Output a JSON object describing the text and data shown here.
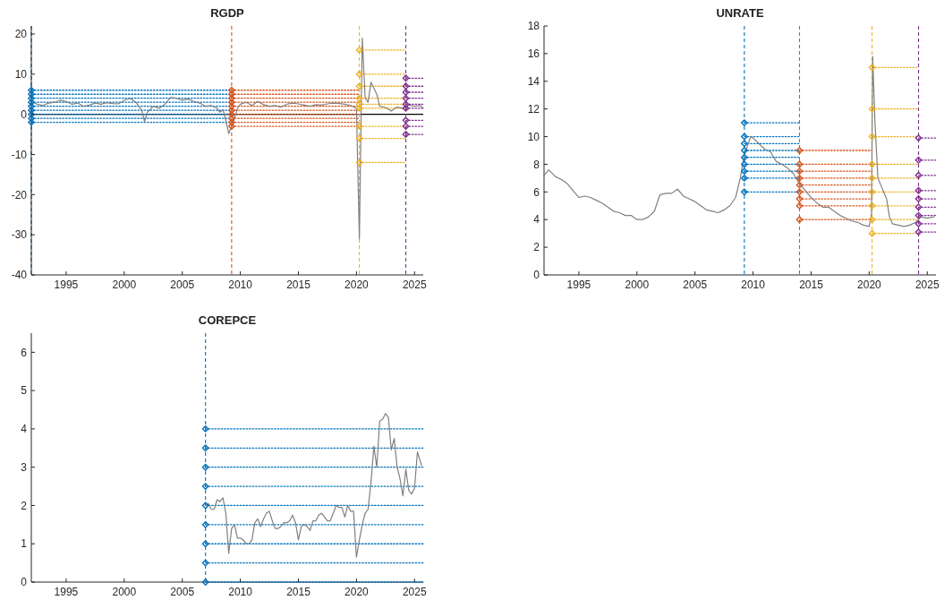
{
  "chart_data": [
    {
      "type": "line",
      "title": "RGDP",
      "xlim": [
        1992,
        2025.75
      ],
      "xticks": [
        1995,
        2000,
        2005,
        2010,
        2015,
        2020,
        2025
      ],
      "ylim": [
        -40,
        22
      ],
      "yticks": [
        -40,
        -30,
        -20,
        -10,
        0,
        10,
        20
      ],
      "line_style": "solid",
      "ref_lines": [
        {
          "axis": "y",
          "value": 0,
          "color": "#000000",
          "line_style": "solid"
        },
        {
          "axis": "x",
          "value": 1992,
          "color": "#0072bd",
          "line_style": "dashed"
        },
        {
          "axis": "x",
          "value": 2009.25,
          "color": "#d95319",
          "line_style": "dashed"
        },
        {
          "axis": "x",
          "value": 2020.25,
          "color": "#edb120",
          "line_style": "dashed"
        },
        {
          "axis": "x",
          "value": 2024.25,
          "color": "#7e2f8e",
          "line_style": "dashed"
        }
      ],
      "series": [
        {
          "type": "line",
          "color": "#0072bd",
          "line_style": "dotted",
          "x": [
            1992,
            2009.25
          ],
          "values": [
            -2,
            -2
          ]
        },
        {
          "type": "line",
          "color": "#0072bd",
          "line_style": "dotted",
          "x": [
            1992,
            2009.25
          ],
          "values": [
            -1,
            -1
          ]
        },
        {
          "type": "line",
          "color": "#0072bd",
          "line_style": "dotted",
          "x": [
            1992,
            2009.25
          ],
          "values": [
            0,
            0
          ]
        },
        {
          "type": "line",
          "color": "#0072bd",
          "line_style": "dotted",
          "x": [
            1992,
            2009.25
          ],
          "values": [
            1,
            1
          ]
        },
        {
          "type": "line",
          "color": "#0072bd",
          "line_style": "dotted",
          "x": [
            1992,
            2009.25
          ],
          "values": [
            2,
            2
          ]
        },
        {
          "type": "line",
          "color": "#0072bd",
          "line_style": "dotted",
          "x": [
            1992,
            2009.25
          ],
          "values": [
            3,
            3
          ]
        },
        {
          "type": "line",
          "color": "#0072bd",
          "line_style": "dotted",
          "x": [
            1992,
            2009.25
          ],
          "values": [
            4,
            4
          ]
        },
        {
          "type": "line",
          "color": "#0072bd",
          "line_style": "dotted",
          "x": [
            1992,
            2009.25
          ],
          "values": [
            5,
            5
          ]
        },
        {
          "type": "line",
          "color": "#0072bd",
          "line_style": "dotted",
          "x": [
            1992,
            2009.25
          ],
          "values": [
            6,
            6
          ]
        },
        {
          "type": "line",
          "color": "#d95319",
          "line_style": "dotted",
          "x": [
            2009.25,
            2020.25
          ],
          "values": [
            -3,
            -3
          ]
        },
        {
          "type": "line",
          "color": "#d95319",
          "line_style": "dotted",
          "x": [
            2009.25,
            2020.25
          ],
          "values": [
            -2,
            -2
          ]
        },
        {
          "type": "line",
          "color": "#d95319",
          "line_style": "dotted",
          "x": [
            2009.25,
            2020.25
          ],
          "values": [
            -1,
            -1
          ]
        },
        {
          "type": "line",
          "color": "#d95319",
          "line_style": "dotted",
          "x": [
            2009.25,
            2020.25
          ],
          "values": [
            0,
            0
          ]
        },
        {
          "type": "line",
          "color": "#d95319",
          "line_style": "dotted",
          "x": [
            2009.25,
            2020.25
          ],
          "values": [
            1,
            1
          ]
        },
        {
          "type": "line",
          "color": "#d95319",
          "line_style": "dotted",
          "x": [
            2009.25,
            2020.25
          ],
          "values": [
            2,
            2
          ]
        },
        {
          "type": "line",
          "color": "#d95319",
          "line_style": "dotted",
          "x": [
            2009.25,
            2020.25
          ],
          "values": [
            3,
            3
          ]
        },
        {
          "type": "line",
          "color": "#d95319",
          "line_style": "dotted",
          "x": [
            2009.25,
            2020.25
          ],
          "values": [
            4,
            4
          ]
        },
        {
          "type": "line",
          "color": "#d95319",
          "line_style": "dotted",
          "x": [
            2009.25,
            2020.25
          ],
          "values": [
            5,
            5
          ]
        },
        {
          "type": "line",
          "color": "#d95319",
          "line_style": "dotted",
          "x": [
            2009.25,
            2020.25
          ],
          "values": [
            6,
            6
          ]
        },
        {
          "type": "line",
          "color": "#edb120",
          "line_style": "dotted",
          "x": [
            2020.25,
            2024.25
          ],
          "values": [
            -12,
            -12
          ]
        },
        {
          "type": "line",
          "color": "#edb120",
          "line_style": "dotted",
          "x": [
            2020.25,
            2024.25
          ],
          "values": [
            -6,
            -6
          ]
        },
        {
          "type": "line",
          "color": "#edb120",
          "line_style": "dotted",
          "x": [
            2020.25,
            2024.25
          ],
          "values": [
            -3,
            -3
          ]
        },
        {
          "type": "line",
          "color": "#edb120",
          "line_style": "dotted",
          "x": [
            2020.25,
            2024.25
          ],
          "values": [
            1.5,
            1.5
          ]
        },
        {
          "type": "line",
          "color": "#edb120",
          "line_style": "dotted",
          "x": [
            2020.25,
            2024.25
          ],
          "values": [
            2.5,
            2.5
          ]
        },
        {
          "type": "line",
          "color": "#edb120",
          "line_style": "dotted",
          "x": [
            2020.25,
            2024.25
          ],
          "values": [
            4,
            4
          ]
        },
        {
          "type": "line",
          "color": "#edb120",
          "line_style": "dotted",
          "x": [
            2020.25,
            2024.25
          ],
          "values": [
            7,
            7
          ]
        },
        {
          "type": "line",
          "color": "#edb120",
          "line_style": "dotted",
          "x": [
            2020.25,
            2024.25
          ],
          "values": [
            10,
            10
          ]
        },
        {
          "type": "line",
          "color": "#edb120",
          "line_style": "dotted",
          "x": [
            2020.25,
            2024.25
          ],
          "values": [
            16,
            16
          ]
        },
        {
          "type": "line",
          "color": "#7e2f8e",
          "line_style": "dotted",
          "x": [
            2024.25,
            2025.75
          ],
          "values": [
            -5,
            -5
          ]
        },
        {
          "type": "line",
          "color": "#7e2f8e",
          "line_style": "dotted",
          "x": [
            2024.25,
            2025.75
          ],
          "values": [
            -3,
            -3
          ]
        },
        {
          "type": "line",
          "color": "#7e2f8e",
          "line_style": "dotted",
          "x": [
            2024.25,
            2025.75
          ],
          "values": [
            -1.5,
            -1.5
          ]
        },
        {
          "type": "line",
          "color": "#7e2f8e",
          "line_style": "dotted",
          "x": [
            2024.25,
            2025.75
          ],
          "values": [
            1.5,
            1.5
          ]
        },
        {
          "type": "line",
          "color": "#7e2f8e",
          "line_style": "dotted",
          "x": [
            2024.25,
            2025.75
          ],
          "values": [
            2.5,
            2.5
          ]
        },
        {
          "type": "line",
          "color": "#7e2f8e",
          "line_style": "dotted",
          "x": [
            2024.25,
            2025.75
          ],
          "values": [
            4,
            4
          ]
        },
        {
          "type": "line",
          "color": "#7e2f8e",
          "line_style": "dotted",
          "x": [
            2024.25,
            2025.75
          ],
          "values": [
            5.5,
            5.5
          ]
        },
        {
          "type": "line",
          "color": "#7e2f8e",
          "line_style": "dotted",
          "x": [
            2024.25,
            2025.75
          ],
          "values": [
            7,
            7
          ]
        },
        {
          "type": "line",
          "color": "#7e2f8e",
          "line_style": "dotted",
          "x": [
            2024.25,
            2025.75
          ],
          "values": [
            9,
            9
          ]
        },
        {
          "type": "line",
          "color": "#808080",
          "x": [
            1992,
            1992.5,
            1993,
            1993.5,
            1994,
            1994.5,
            1995,
            1995.5,
            1996,
            1996.5,
            1997,
            1997.5,
            1998,
            1998.5,
            1999,
            1999.5,
            2000,
            2000.5,
            2001,
            2001.5,
            2001.75,
            2002,
            2002.5,
            2003,
            2003.5,
            2004,
            2004.5,
            2005,
            2005.5,
            2006,
            2006.5,
            2007,
            2007.5,
            2008,
            2008.25,
            2008.5,
            2008.75,
            2009,
            2009.25,
            2009.5,
            2009.75,
            2010,
            2010.5,
            2011,
            2011.5,
            2012,
            2012.5,
            2013,
            2013.5,
            2014,
            2014.5,
            2015,
            2015.5,
            2016,
            2016.5,
            2017,
            2017.5,
            2018,
            2018.5,
            2019,
            2019.5,
            2020,
            2020.25,
            2020.5,
            2020.75,
            2021,
            2021.25,
            2021.5,
            2021.75,
            2022,
            2022.5,
            2023,
            2023.5,
            2024,
            2024.5,
            2025,
            2025.5,
            2025.75
          ],
          "values": [
            3.3,
            2.5,
            2.2,
            2.8,
            3.0,
            3.5,
            3.2,
            2.5,
            2.8,
            2.0,
            2.3,
            2.8,
            2.5,
            2.9,
            2.7,
            2.6,
            3.5,
            4.0,
            3.0,
            1.0,
            -1.8,
            0.5,
            2.0,
            1.5,
            2.5,
            4.2,
            4.0,
            3.5,
            3.8,
            3.2,
            2.8,
            2.0,
            2.2,
            1.5,
            0.5,
            1.2,
            -1.5,
            -4.8,
            -3,
            -1,
            1.5,
            2.5,
            3.0,
            2.2,
            3.2,
            2.4,
            2.0,
            2.2,
            1.8,
            2.5,
            2.8,
            2.6,
            2.3,
            2.0,
            2.4,
            2.3,
            2.6,
            2.8,
            2.7,
            2.5,
            2.2,
            1.5,
            -31,
            19,
            4,
            3,
            8,
            6.5,
            5,
            2,
            1.7,
            0.8,
            1.8,
            1.5,
            2.3,
            2.0,
            2.2,
            1.5
          ]
        },
        {
          "type": "scatter",
          "marker": "diamond",
          "color": "#0072bd",
          "x": [
            1992,
            1992,
            1992,
            1992,
            1992,
            1992,
            1992,
            1992,
            1992
          ],
          "values": [
            -2,
            -1,
            0,
            1,
            2,
            3,
            4,
            5,
            6
          ]
        },
        {
          "type": "scatter",
          "marker": "diamond",
          "color": "#d95319",
          "x": [
            2009.25,
            2009.25,
            2009.25,
            2009.25,
            2009.25,
            2009.25,
            2009.25,
            2009.25,
            2009.25,
            2009.25
          ],
          "values": [
            -3,
            -2,
            -1,
            0,
            1,
            2,
            3,
            4,
            5,
            6
          ]
        },
        {
          "type": "scatter",
          "marker": "diamond",
          "color": "#edb120",
          "x": [
            2020.25,
            2020.25,
            2020.25,
            2020.25,
            2020.25,
            2020.25,
            2020.25,
            2020.25,
            2020.25
          ],
          "values": [
            -12,
            -6,
            -3,
            1.5,
            2.5,
            4,
            7,
            10,
            16
          ]
        },
        {
          "type": "scatter",
          "marker": "diamond",
          "color": "#7e2f8e",
          "x": [
            2024.25,
            2024.25,
            2024.25,
            2024.25,
            2024.25,
            2024.25,
            2024.25,
            2024.25,
            2024.25
          ],
          "values": [
            -5,
            -3,
            -1.5,
            1.5,
            2.5,
            4,
            5.5,
            7,
            9
          ]
        }
      ]
    },
    {
      "type": "line",
      "title": "UNRATE",
      "xlim": [
        1992,
        2025.75
      ],
      "xticks": [
        1995,
        2000,
        2005,
        2010,
        2015,
        2020,
        2025
      ],
      "ylim": [
        0,
        18
      ],
      "yticks": [
        0,
        2,
        4,
        6,
        8,
        10,
        12,
        14,
        16,
        18
      ],
      "line_style": "solid",
      "ref_lines": [
        {
          "axis": "x",
          "value": 2009.25,
          "color": "#0072bd",
          "line_style": "dashed"
        },
        {
          "axis": "x",
          "value": 2014,
          "color": "#d95319",
          "line_style": "dashed"
        },
        {
          "axis": "x",
          "value": 2020.25,
          "color": "#edb120",
          "line_style": "dashed"
        },
        {
          "axis": "x",
          "value": 2024.25,
          "color": "#7e2f8e",
          "line_style": "dashed"
        }
      ],
      "series": [
        {
          "type": "line",
          "color": "#0072bd",
          "line_style": "dotted",
          "x": [
            2009.25,
            2014
          ],
          "values": [
            6,
            6
          ]
        },
        {
          "type": "line",
          "color": "#0072bd",
          "line_style": "dotted",
          "x": [
            2009.25,
            2014
          ],
          "values": [
            7,
            7
          ]
        },
        {
          "type": "line",
          "color": "#0072bd",
          "line_style": "dotted",
          "x": [
            2009.25,
            2014
          ],
          "values": [
            7.5,
            7.5
          ]
        },
        {
          "type": "line",
          "color": "#0072bd",
          "line_style": "dotted",
          "x": [
            2009.25,
            2014
          ],
          "values": [
            8,
            8
          ]
        },
        {
          "type": "line",
          "color": "#0072bd",
          "line_style": "dotted",
          "x": [
            2009.25,
            2014
          ],
          "values": [
            8.5,
            8.5
          ]
        },
        {
          "type": "line",
          "color": "#0072bd",
          "line_style": "dotted",
          "x": [
            2009.25,
            2014
          ],
          "values": [
            9,
            9
          ]
        },
        {
          "type": "line",
          "color": "#0072bd",
          "line_style": "dotted",
          "x": [
            2009.25,
            2014
          ],
          "values": [
            9.5,
            9.5
          ]
        },
        {
          "type": "line",
          "color": "#0072bd",
          "line_style": "dotted",
          "x": [
            2009.25,
            2014
          ],
          "values": [
            10,
            10
          ]
        },
        {
          "type": "line",
          "color": "#0072bd",
          "line_style": "dotted",
          "x": [
            2009.25,
            2014
          ],
          "values": [
            11,
            11
          ]
        },
        {
          "type": "line",
          "color": "#d95319",
          "line_style": "dotted",
          "x": [
            2014,
            2020.25
          ],
          "values": [
            4,
            4
          ]
        },
        {
          "type": "line",
          "color": "#d95319",
          "line_style": "dotted",
          "x": [
            2014,
            2020.25
          ],
          "values": [
            5,
            5
          ]
        },
        {
          "type": "line",
          "color": "#d95319",
          "line_style": "dotted",
          "x": [
            2014,
            2020.25
          ],
          "values": [
            5.5,
            5.5
          ]
        },
        {
          "type": "line",
          "color": "#d95319",
          "line_style": "dotted",
          "x": [
            2014,
            2020.25
          ],
          "values": [
            6,
            6
          ]
        },
        {
          "type": "line",
          "color": "#d95319",
          "line_style": "dotted",
          "x": [
            2014,
            2020.25
          ],
          "values": [
            6.5,
            6.5
          ]
        },
        {
          "type": "line",
          "color": "#d95319",
          "line_style": "dotted",
          "x": [
            2014,
            2020.25
          ],
          "values": [
            7,
            7
          ]
        },
        {
          "type": "line",
          "color": "#d95319",
          "line_style": "dotted",
          "x": [
            2014,
            2020.25
          ],
          "values": [
            7.5,
            7.5
          ]
        },
        {
          "type": "line",
          "color": "#d95319",
          "line_style": "dotted",
          "x": [
            2014,
            2020.25
          ],
          "values": [
            8,
            8
          ]
        },
        {
          "type": "line",
          "color": "#d95319",
          "line_style": "dotted",
          "x": [
            2014,
            2020.25
          ],
          "values": [
            9,
            9
          ]
        },
        {
          "type": "line",
          "color": "#edb120",
          "line_style": "dotted",
          "x": [
            2020.25,
            2024.25
          ],
          "values": [
            3,
            3
          ]
        },
        {
          "type": "line",
          "color": "#edb120",
          "line_style": "dotted",
          "x": [
            2020.25,
            2024.25
          ],
          "values": [
            4,
            4
          ]
        },
        {
          "type": "line",
          "color": "#edb120",
          "line_style": "dotted",
          "x": [
            2020.25,
            2024.25
          ],
          "values": [
            5,
            5
          ]
        },
        {
          "type": "line",
          "color": "#edb120",
          "line_style": "dotted",
          "x": [
            2020.25,
            2024.25
          ],
          "values": [
            6,
            6
          ]
        },
        {
          "type": "line",
          "color": "#edb120",
          "line_style": "dotted",
          "x": [
            2020.25,
            2024.25
          ],
          "values": [
            7,
            7
          ]
        },
        {
          "type": "line",
          "color": "#edb120",
          "line_style": "dotted",
          "x": [
            2020.25,
            2024.25
          ],
          "values": [
            8,
            8
          ]
        },
        {
          "type": "line",
          "color": "#edb120",
          "line_style": "dotted",
          "x": [
            2020.25,
            2024.25
          ],
          "values": [
            10,
            10
          ]
        },
        {
          "type": "line",
          "color": "#edb120",
          "line_style": "dotted",
          "x": [
            2020.25,
            2024.25
          ],
          "values": [
            12,
            12
          ]
        },
        {
          "type": "line",
          "color": "#edb120",
          "line_style": "dotted",
          "x": [
            2020.25,
            2024.25
          ],
          "values": [
            15,
            15
          ]
        },
        {
          "type": "line",
          "color": "#7e2f8e",
          "line_style": "dotted",
          "x": [
            2024.25,
            2025.75
          ],
          "values": [
            3.1,
            3.1
          ]
        },
        {
          "type": "line",
          "color": "#7e2f8e",
          "line_style": "dotted",
          "x": [
            2024.25,
            2025.75
          ],
          "values": [
            3.7,
            3.7
          ]
        },
        {
          "type": "line",
          "color": "#7e2f8e",
          "line_style": "dotted",
          "x": [
            2024.25,
            2025.75
          ],
          "values": [
            4.3,
            4.3
          ]
        },
        {
          "type": "line",
          "color": "#7e2f8e",
          "line_style": "dotted",
          "x": [
            2024.25,
            2025.75
          ],
          "values": [
            4.9,
            4.9
          ]
        },
        {
          "type": "line",
          "color": "#7e2f8e",
          "line_style": "dotted",
          "x": [
            2024.25,
            2025.75
          ],
          "values": [
            5.5,
            5.5
          ]
        },
        {
          "type": "line",
          "color": "#7e2f8e",
          "line_style": "dotted",
          "x": [
            2024.25,
            2025.75
          ],
          "values": [
            6.1,
            6.1
          ]
        },
        {
          "type": "line",
          "color": "#7e2f8e",
          "line_style": "dotted",
          "x": [
            2024.25,
            2025.75
          ],
          "values": [
            7.2,
            7.2
          ]
        },
        {
          "type": "line",
          "color": "#7e2f8e",
          "line_style": "dotted",
          "x": [
            2024.25,
            2025.75
          ],
          "values": [
            8.3,
            8.3
          ]
        },
        {
          "type": "line",
          "color": "#7e2f8e",
          "line_style": "dotted",
          "x": [
            2024.25,
            2025.75
          ],
          "values": [
            9.9,
            9.9
          ]
        },
        {
          "type": "line",
          "color": "#808080",
          "x": [
            1992,
            1992.4,
            1993,
            1993.5,
            1994,
            1994.5,
            1995,
            1995.5,
            1996,
            1996.5,
            1997,
            1997.5,
            1998,
            1998.5,
            1999,
            1999.5,
            2000,
            2000.5,
            2001,
            2001.5,
            2001.9,
            2002,
            2002.5,
            2003,
            2003.5,
            2004,
            2004.5,
            2005,
            2005.5,
            2006,
            2006.5,
            2007,
            2007.5,
            2008,
            2008.5,
            2008.9,
            2009.25,
            2009.8,
            2010,
            2010.5,
            2011,
            2011.5,
            2012,
            2012.5,
            2013,
            2013.5,
            2014,
            2014.5,
            2015,
            2015.5,
            2016,
            2016.5,
            2017,
            2017.5,
            2018,
            2018.5,
            2019,
            2019.5,
            2020,
            2020.2,
            2020.3,
            2020.5,
            2020.75,
            2021,
            2021.5,
            2021.75,
            2022,
            2022.5,
            2023,
            2023.5,
            2024,
            2024.5,
            2025,
            2025.6
          ],
          "values": [
            7.2,
            7.6,
            7.1,
            6.9,
            6.6,
            6.1,
            5.6,
            5.7,
            5.6,
            5.4,
            5.2,
            4.9,
            4.6,
            4.5,
            4.3,
            4.3,
            4.0,
            4.0,
            4.2,
            4.6,
            5.6,
            5.8,
            5.9,
            5.9,
            6.2,
            5.7,
            5.5,
            5.3,
            5.0,
            4.7,
            4.6,
            4.5,
            4.7,
            5.0,
            5.6,
            7.0,
            8.7,
            10.0,
            9.9,
            9.5,
            9.1,
            8.9,
            8.2,
            8.0,
            7.7,
            7.3,
            6.6,
            6.1,
            5.6,
            5.2,
            4.9,
            4.9,
            4.6,
            4.3,
            4.1,
            3.9,
            3.8,
            3.6,
            3.5,
            4.4,
            15.8,
            11,
            7,
            6.5,
            5.5,
            4.2,
            3.7,
            3.6,
            3.5,
            3.6,
            3.8,
            4.2,
            4.1,
            4.2
          ]
        },
        {
          "type": "scatter",
          "marker": "diamond",
          "color": "#0072bd",
          "x": [
            2009.25,
            2009.25,
            2009.25,
            2009.25,
            2009.25,
            2009.25,
            2009.25,
            2009.25,
            2009.25
          ],
          "values": [
            6,
            7,
            7.5,
            8,
            8.5,
            9,
            9.5,
            10,
            11
          ]
        },
        {
          "type": "scatter",
          "marker": "diamond",
          "color": "#d95319",
          "x": [
            2014,
            2014,
            2014,
            2014,
            2014,
            2014,
            2014,
            2014,
            2014
          ],
          "values": [
            4,
            5,
            5.5,
            6,
            6.5,
            7,
            7.5,
            8,
            9
          ]
        },
        {
          "type": "scatter",
          "marker": "diamond",
          "color": "#edb120",
          "x": [
            2020.25,
            2020.25,
            2020.25,
            2020.25,
            2020.25,
            2020.25,
            2020.25,
            2020.25,
            2020.25
          ],
          "values": [
            3,
            4,
            5,
            6,
            7,
            8,
            10,
            12,
            15
          ]
        },
        {
          "type": "scatter",
          "marker": "diamond",
          "color": "#7e2f8e",
          "x": [
            2024.25,
            2024.25,
            2024.25,
            2024.25,
            2024.25,
            2024.25,
            2024.25,
            2024.25,
            2024.25
          ],
          "values": [
            3.1,
            3.7,
            4.3,
            4.9,
            5.5,
            6.1,
            7.2,
            8.3,
            9.9
          ]
        }
      ]
    },
    {
      "type": "line",
      "title": "COREPCE",
      "xlim": [
        1992,
        2025.75
      ],
      "xticks": [
        1995,
        2000,
        2005,
        2010,
        2015,
        2020,
        2025
      ],
      "ylim": [
        0,
        6.5
      ],
      "yticks": [
        0,
        1,
        2,
        3,
        4,
        5,
        6
      ],
      "line_style": "solid",
      "ref_lines": [
        {
          "axis": "x",
          "value": 2007,
          "color": "#0072bd",
          "line_style": "dashed"
        }
      ],
      "series": [
        {
          "type": "line",
          "color": "#0072bd",
          "line_style": "dotted",
          "x": [
            2007,
            2025.75
          ],
          "values": [
            0,
            0
          ]
        },
        {
          "type": "line",
          "color": "#0072bd",
          "line_style": "dotted",
          "x": [
            2007,
            2025.75
          ],
          "values": [
            0.5,
            0.5
          ]
        },
        {
          "type": "line",
          "color": "#0072bd",
          "line_style": "dotted",
          "x": [
            2007,
            2025.75
          ],
          "values": [
            1,
            1
          ]
        },
        {
          "type": "line",
          "color": "#0072bd",
          "line_style": "dotted",
          "x": [
            2007,
            2025.75
          ],
          "values": [
            1.5,
            1.5
          ]
        },
        {
          "type": "line",
          "color": "#0072bd",
          "line_style": "dotted",
          "x": [
            2007,
            2025.75
          ],
          "values": [
            2,
            2
          ]
        },
        {
          "type": "line",
          "color": "#0072bd",
          "line_style": "dotted",
          "x": [
            2007,
            2025.75
          ],
          "values": [
            2.5,
            2.5
          ]
        },
        {
          "type": "line",
          "color": "#0072bd",
          "line_style": "dotted",
          "x": [
            2007,
            2025.75
          ],
          "values": [
            3,
            3
          ]
        },
        {
          "type": "line",
          "color": "#0072bd",
          "line_style": "dotted",
          "x": [
            2007,
            2025.75
          ],
          "values": [
            3.5,
            3.5
          ]
        },
        {
          "type": "line",
          "color": "#0072bd",
          "line_style": "dotted",
          "x": [
            2007,
            2025.75
          ],
          "values": [
            4,
            4
          ]
        },
        {
          "type": "line",
          "color": "#808080",
          "x": [
            2007,
            2007.25,
            2007.5,
            2007.75,
            2008,
            2008.25,
            2008.5,
            2008.75,
            2009,
            2009.25,
            2009.5,
            2009.75,
            2010,
            2010.25,
            2010.5,
            2010.75,
            2011,
            2011.25,
            2011.5,
            2011.75,
            2012,
            2012.25,
            2012.5,
            2012.75,
            2013,
            2013.25,
            2013.5,
            2013.75,
            2014,
            2014.25,
            2014.5,
            2014.75,
            2015,
            2015.25,
            2015.5,
            2015.75,
            2016,
            2016.25,
            2016.5,
            2016.75,
            2017,
            2017.25,
            2017.5,
            2017.75,
            2018,
            2018.25,
            2018.5,
            2018.75,
            2019,
            2019.25,
            2019.5,
            2019.75,
            2020,
            2020.25,
            2020.5,
            2020.75,
            2021,
            2021.25,
            2021.5,
            2021.75,
            2022,
            2022.25,
            2022.5,
            2022.75,
            2023,
            2023.25,
            2023.5,
            2023.75,
            2024,
            2024.25,
            2024.5,
            2024.75,
            2025,
            2025.25,
            2025.6
          ],
          "values": [
            2.0,
            2.05,
            1.9,
            1.9,
            2.15,
            2.1,
            2.2,
            1.8,
            0.75,
            1.4,
            1.5,
            1.15,
            1.15,
            1.1,
            1.0,
            1.0,
            1.1,
            1.55,
            1.65,
            1.45,
            1.65,
            1.8,
            1.85,
            1.6,
            1.4,
            1.4,
            1.45,
            1.55,
            1.55,
            1.6,
            1.75,
            1.55,
            1.1,
            1.45,
            1.5,
            1.45,
            1.35,
            1.6,
            1.6,
            1.75,
            1.8,
            1.7,
            1.6,
            1.6,
            1.8,
            2.0,
            1.95,
            1.95,
            1.7,
            2.0,
            1.85,
            1.85,
            0.65,
            1.1,
            1.5,
            1.8,
            1.9,
            2.6,
            3.55,
            3.0,
            4.2,
            4.25,
            4.4,
            4.3,
            3.45,
            3.75,
            3.0,
            2.7,
            2.25,
            2.95,
            2.4,
            2.3,
            2.45,
            3.4,
            3.05
          ]
        },
        {
          "type": "scatter",
          "marker": "diamond",
          "color": "#0072bd",
          "x": [
            2007,
            2007,
            2007,
            2007,
            2007,
            2007,
            2007,
            2007,
            2007
          ],
          "values": [
            0,
            0.5,
            1,
            1.5,
            2,
            2.5,
            3,
            3.5,
            4
          ]
        }
      ]
    }
  ]
}
